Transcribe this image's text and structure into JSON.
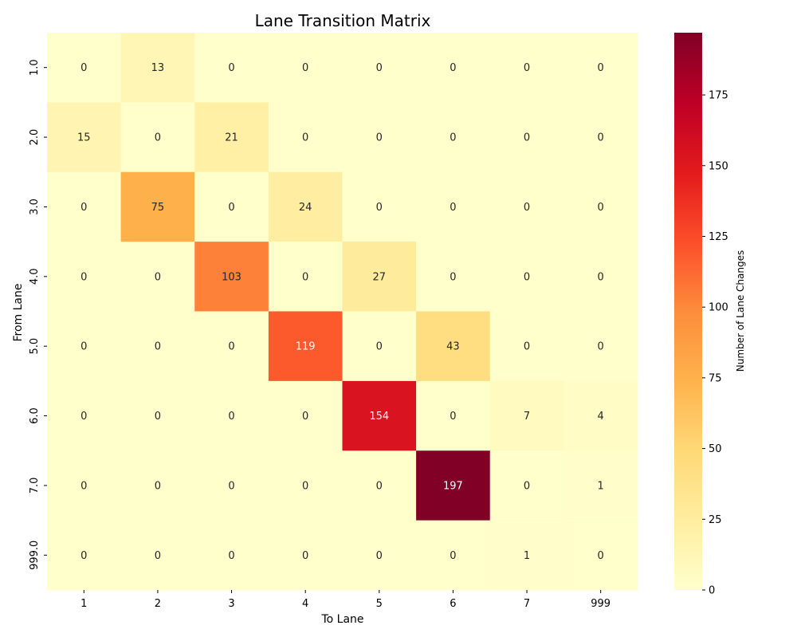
{
  "chart_data": {
    "type": "heatmap",
    "title": "Lane Transition Matrix",
    "xlabel": "To Lane",
    "ylabel": "From Lane",
    "x_categories": [
      "1",
      "2",
      "3",
      "4",
      "5",
      "6",
      "7",
      "999"
    ],
    "y_categories": [
      "1.0",
      "2.0",
      "3.0",
      "4.0",
      "5.0",
      "6.0",
      "7.0",
      "999.0"
    ],
    "values": [
      [
        0,
        13,
        0,
        0,
        0,
        0,
        0,
        0
      ],
      [
        15,
        0,
        21,
        0,
        0,
        0,
        0,
        0
      ],
      [
        0,
        75,
        0,
        24,
        0,
        0,
        0,
        0
      ],
      [
        0,
        0,
        103,
        0,
        27,
        0,
        0,
        0
      ],
      [
        0,
        0,
        0,
        119,
        0,
        43,
        0,
        0
      ],
      [
        0,
        0,
        0,
        0,
        154,
        0,
        7,
        4
      ],
      [
        0,
        0,
        0,
        0,
        0,
        197,
        0,
        1
      ],
      [
        0,
        0,
        0,
        0,
        0,
        0,
        1,
        0
      ]
    ],
    "colorscale": "YlOrRd",
    "colorbar": {
      "label": "Number of Lane Changes",
      "range": [
        0,
        197
      ],
      "ticks": [
        0,
        25,
        50,
        75,
        100,
        125,
        150,
        175
      ]
    },
    "annotations": true
  }
}
